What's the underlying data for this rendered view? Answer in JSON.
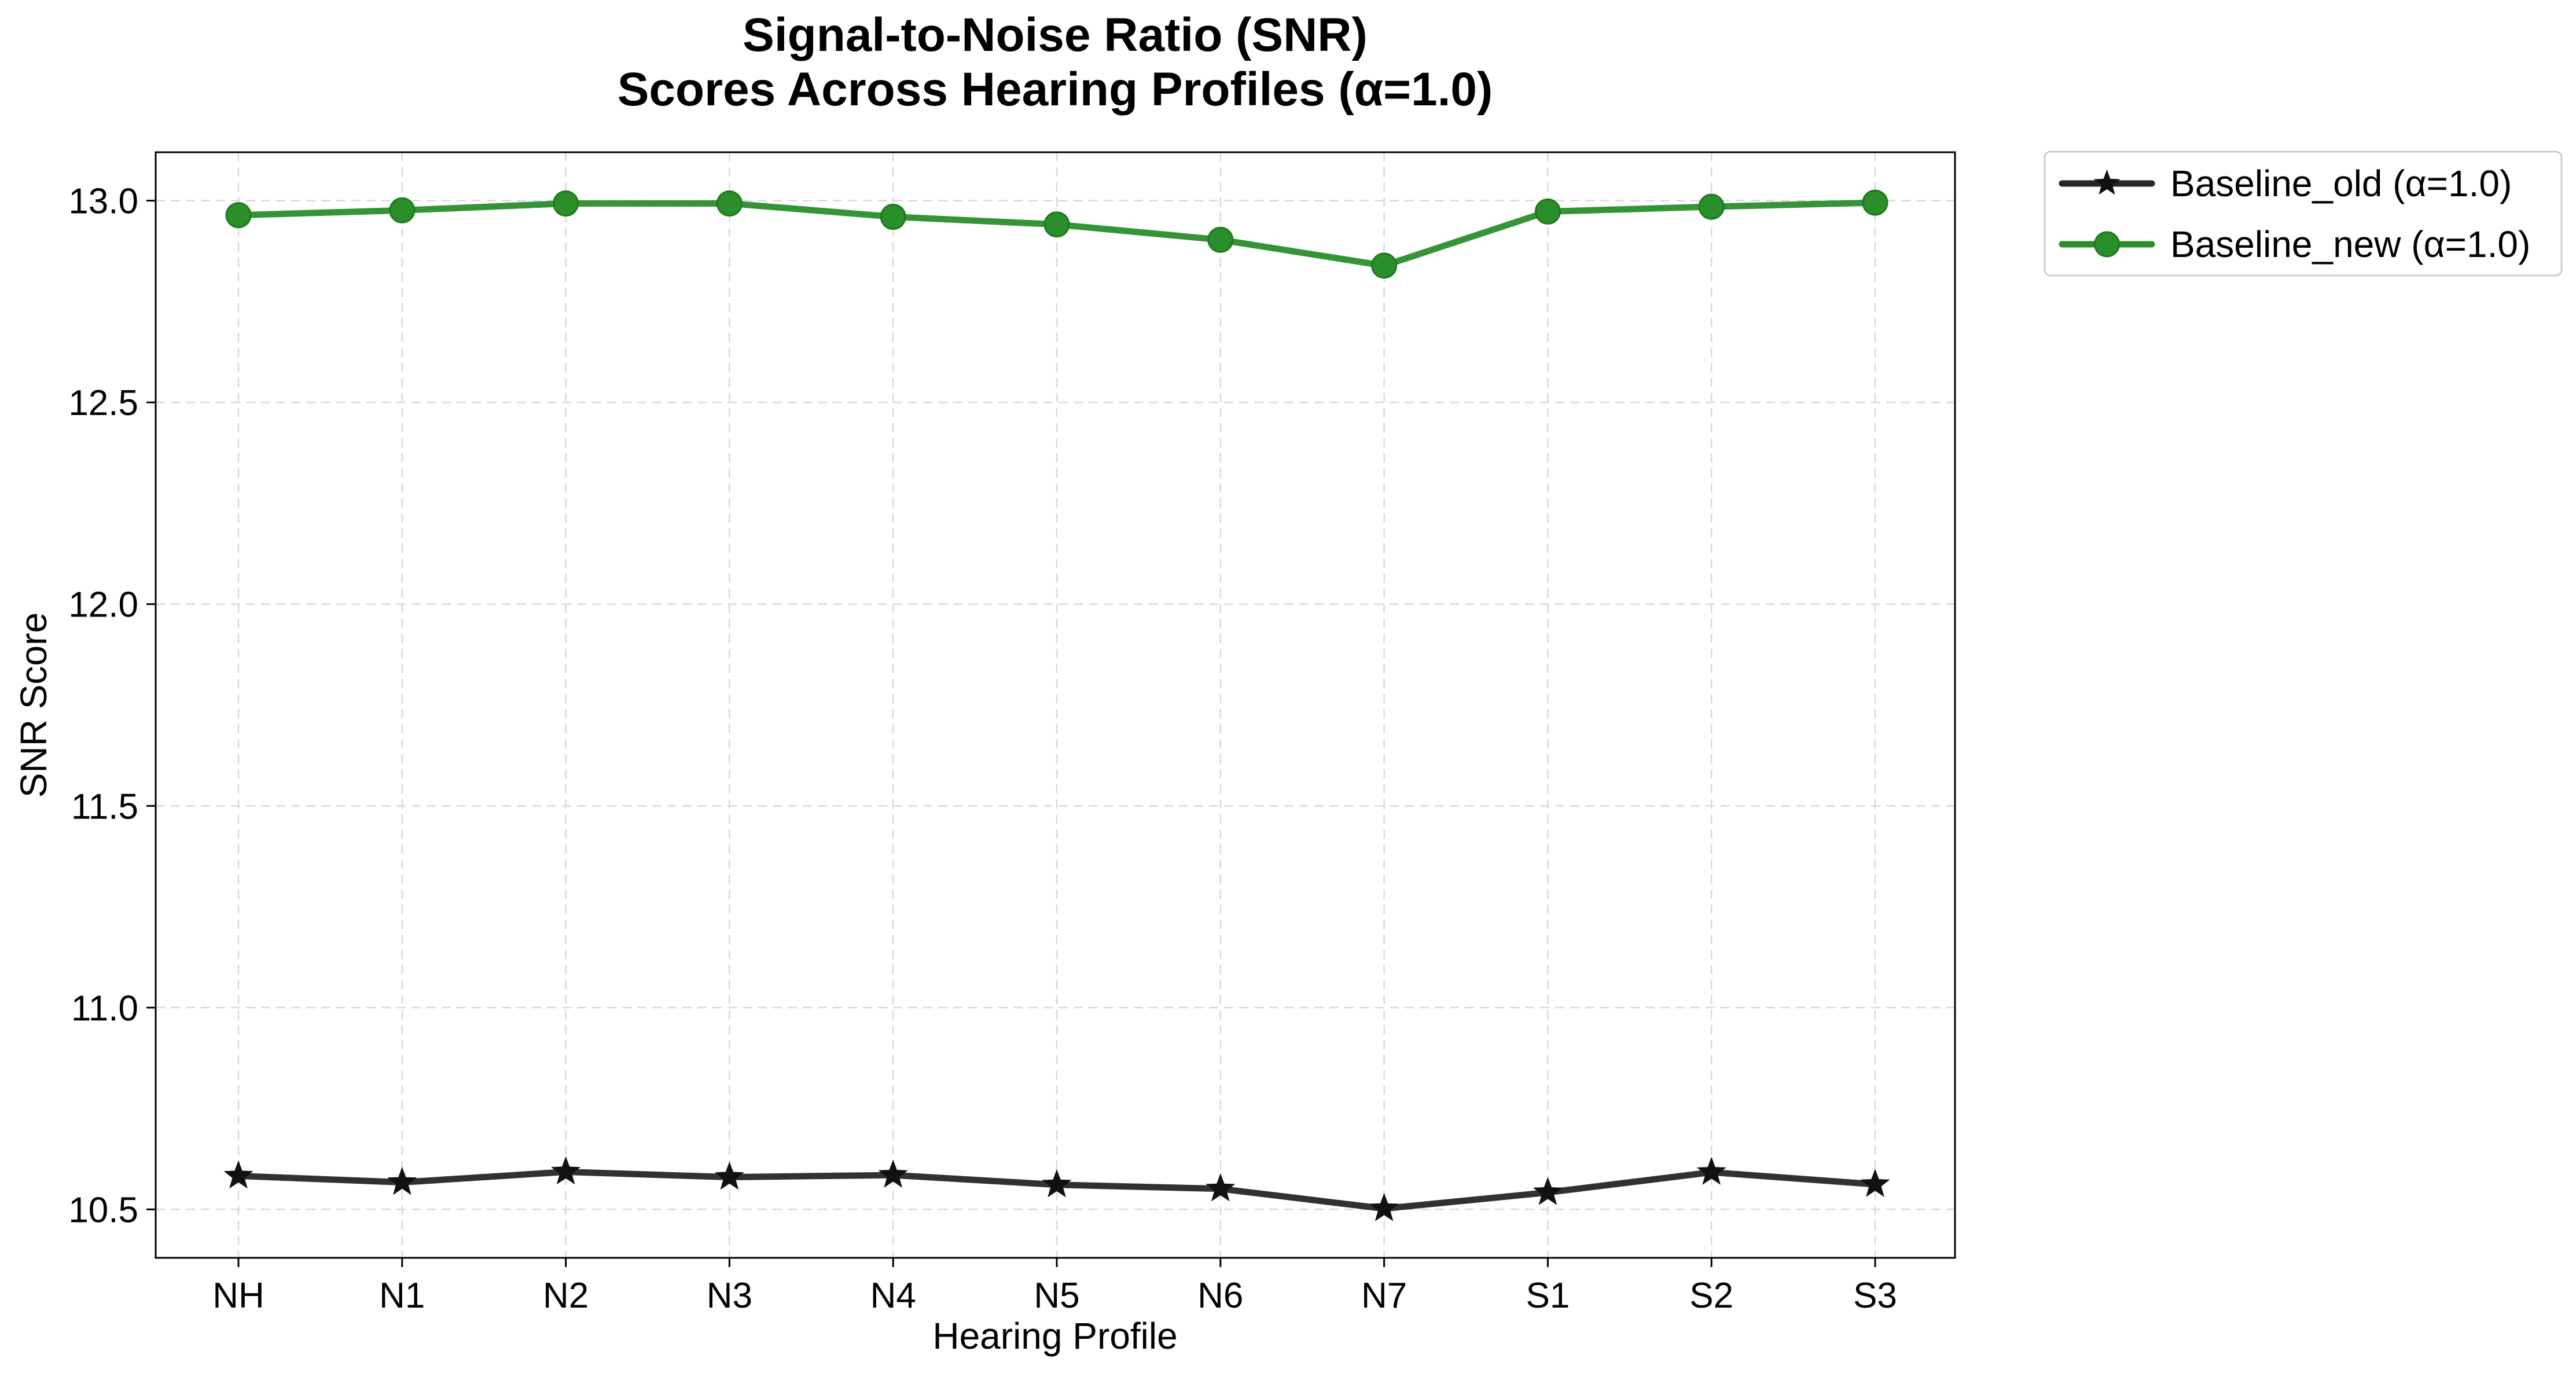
{
  "chart_data": {
    "type": "line",
    "title_lines": [
      "Signal-to-Noise Ratio (SNR)",
      "Scores Across Hearing Profiles (α=1.0)"
    ],
    "xlabel": "Hearing Profile",
    "ylabel": "SNR Score",
    "categories": [
      "NH",
      "N1",
      "N2",
      "N3",
      "N4",
      "N5",
      "N6",
      "N7",
      "S1",
      "S2",
      "S3"
    ],
    "ylim": [
      10.38,
      13.12
    ],
    "yticks": [
      10.5,
      11.0,
      11.5,
      12.0,
      12.5,
      13.0
    ],
    "ytick_labels": [
      "10.5",
      "11.0",
      "11.5",
      "12.0",
      "12.5",
      "13.0"
    ],
    "grid": true,
    "legend_position": "outside-top-right",
    "series": [
      {
        "name": "Baseline_old (α=1.0)",
        "color": "#262626",
        "marker": "star",
        "values": [
          10.583,
          10.567,
          10.593,
          10.58,
          10.585,
          10.561,
          10.551,
          10.502,
          10.542,
          10.592,
          10.562
        ]
      },
      {
        "name": "Baseline_new (α=1.0)",
        "color": "#2a8e2a",
        "marker": "circle",
        "values": [
          12.964,
          12.976,
          12.993,
          12.993,
          12.96,
          12.941,
          12.903,
          12.839,
          12.973,
          12.985,
          12.995
        ]
      }
    ]
  }
}
